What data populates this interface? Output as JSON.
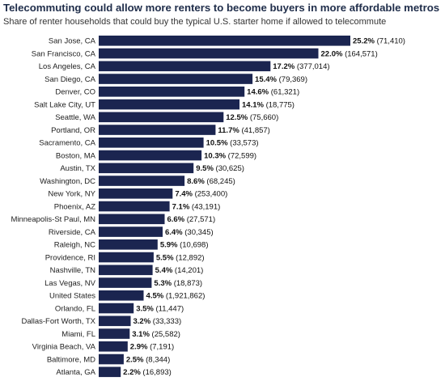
{
  "chart_data": {
    "type": "bar",
    "orientation": "horizontal",
    "title": "Telecommuting could allow more renters to become buyers in more affordable metros",
    "subtitle": "Share of renter households that could buy the typical U.S. starter home if allowed to telecommute",
    "bar_color": "#1b2550",
    "categories": [
      "San Jose, CA",
      "San Francisco, CA",
      "Los Angeles, CA",
      "San Diego, CA",
      "Denver, CO",
      "Salt Lake City, UT",
      "Seattle, WA",
      "Portland, OR",
      "Sacramento, CA",
      "Boston, MA",
      "Austin, TX",
      "Washington, DC",
      "New York, NY",
      "Phoenix, AZ",
      "Minneapolis-St Paul, MN",
      "Riverside, CA",
      "Raleigh, NC",
      "Providence, RI",
      "Nashville, TN",
      "Las Vegas, NV",
      "United States",
      "Orlando, FL",
      "Dallas-Fort Worth, TX",
      "Miami, FL",
      "Virginia Beach, VA",
      "Baltimore, MD",
      "Atlanta, GA"
    ],
    "values": [
      25.2,
      22.0,
      17.2,
      15.4,
      14.6,
      14.1,
      12.5,
      11.7,
      10.5,
      10.3,
      9.5,
      8.6,
      7.4,
      7.1,
      6.6,
      6.4,
      5.9,
      5.5,
      5.4,
      5.3,
      4.5,
      3.5,
      3.2,
      3.1,
      2.9,
      2.5,
      2.2
    ],
    "pct_labels": [
      "25.2%",
      "22.0%",
      "17.2%",
      "15.4%",
      "14.6%",
      "14.1%",
      "12.5%",
      "11.7%",
      "10.5%",
      "10.3%",
      "9.5%",
      "8.6%",
      "7.4%",
      "7.1%",
      "6.6%",
      "6.4%",
      "5.9%",
      "5.5%",
      "5.4%",
      "5.3%",
      "4.5%",
      "3.5%",
      "3.2%",
      "3.1%",
      "2.9%",
      "2.5%",
      "2.2%"
    ],
    "count_labels": [
      "(71,410)",
      "(164,571)",
      "(377,014)",
      "(79,369)",
      "(61,321)",
      "(18,775)",
      "(75,660)",
      "(41,857)",
      "(33,573)",
      "(72,599)",
      "(30,625)",
      "(68,245)",
      "(253,400)",
      "(43,191)",
      "(27,571)",
      "(30,345)",
      "(10,698)",
      "(12,892)",
      "(14,201)",
      "(18,873)",
      "(1,921,862)",
      "(11,447)",
      "(33,333)",
      "(25,582)",
      "(7,191)",
      "(8,344)",
      "(16,893)"
    ]
  }
}
